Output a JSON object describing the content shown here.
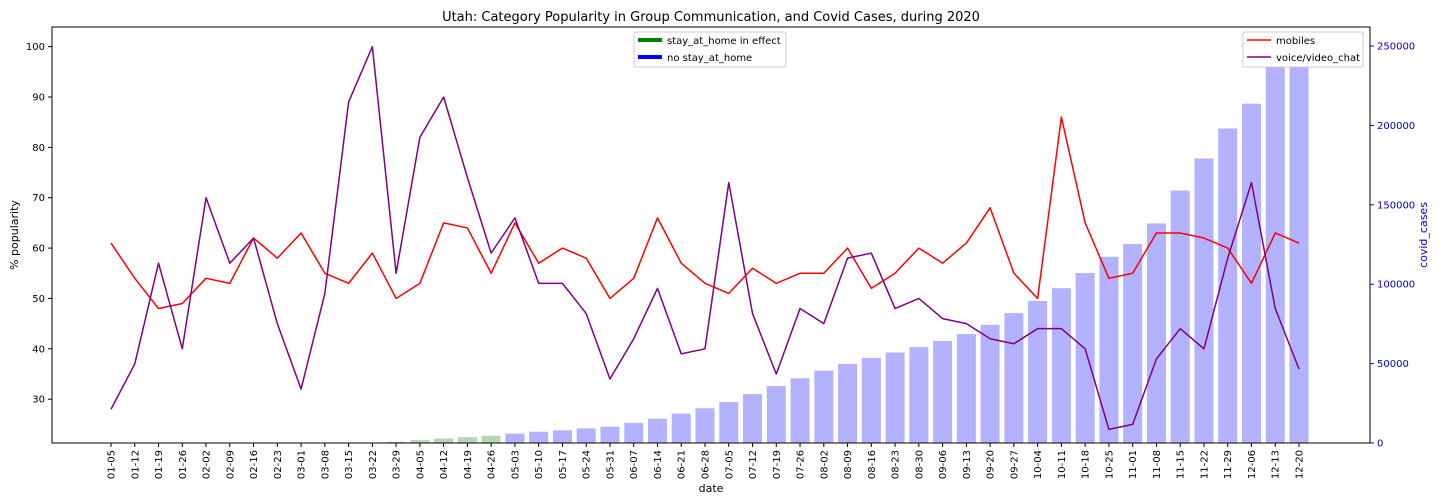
{
  "chart_data": {
    "type": "bar+line",
    "title": "Utah: Category Popularity in Group Communication, and Covid Cases, during 2020",
    "xlabel": "date",
    "ylabel_left": "% popularity",
    "ylabel_right": "covid_cases",
    "categories": [
      "01-05",
      "01-12",
      "01-19",
      "01-26",
      "02-02",
      "02-09",
      "02-16",
      "02-23",
      "03-01",
      "03-08",
      "03-15",
      "03-22",
      "03-29",
      "04-05",
      "04-12",
      "04-19",
      "04-26",
      "05-03",
      "05-10",
      "05-17",
      "05-24",
      "05-31",
      "06-07",
      "06-14",
      "06-21",
      "06-28",
      "07-05",
      "07-12",
      "07-19",
      "07-26",
      "08-02",
      "08-09",
      "08-16",
      "08-23",
      "08-30",
      "09-06",
      "09-13",
      "09-20",
      "09-27",
      "10-04",
      "10-11",
      "10-18",
      "10-25",
      "11-01",
      "11-08",
      "11-15",
      "11-22",
      "11-29",
      "12-06",
      "12-13",
      "12-20"
    ],
    "ylim_left": [
      21.3,
      103.9
    ],
    "ylim_right": [
      0,
      262000
    ],
    "yticks_left": [
      30,
      40,
      50,
      60,
      70,
      80,
      90,
      100
    ],
    "yticks_right": [
      0,
      50000,
      100000,
      150000,
      200000,
      250000
    ],
    "grid": false,
    "line_series": [
      {
        "name": "mobiles",
        "color": "#ff0000",
        "values": [
          61,
          54,
          48,
          49,
          54,
          53,
          62,
          58,
          63,
          55,
          53,
          59,
          50,
          53,
          65,
          64,
          55,
          65,
          57,
          60,
          58,
          50,
          54,
          66,
          57,
          53,
          51,
          56,
          53,
          55,
          55,
          60,
          52,
          55,
          60,
          57,
          61,
          68,
          55,
          50,
          86,
          65,
          54,
          55,
          63,
          63,
          62,
          60,
          53,
          63,
          61
        ]
      },
      {
        "name": "voice/video_chat",
        "color": "#800080",
        "values": [
          28,
          37,
          57,
          40,
          70,
          57,
          62,
          45,
          32,
          51,
          89,
          100,
          55,
          82,
          90,
          74,
          59,
          66,
          53,
          53,
          47,
          34,
          42,
          52,
          39,
          40,
          73,
          47,
          35,
          48,
          45,
          58,
          59,
          48,
          50,
          46,
          45,
          42,
          41,
          44,
          44,
          40,
          24,
          25,
          38,
          44,
          40,
          58,
          73,
          48,
          36
        ]
      }
    ],
    "bar_series": {
      "name": "covid_cases",
      "values": [
        0,
        0,
        0,
        0,
        0,
        0,
        0,
        0,
        0,
        0,
        0,
        0,
        700,
        1800,
        2900,
        3700,
        4600,
        5900,
        7100,
        8000,
        9200,
        10300,
        12700,
        15300,
        18500,
        21900,
        25800,
        30800,
        35900,
        40800,
        45600,
        49800,
        53600,
        57000,
        60400,
        64300,
        68600,
        74400,
        81800,
        89400,
        97500,
        107000,
        117300,
        125300,
        138300,
        159000,
        179200,
        198100,
        213700,
        237100,
        251000
      ],
      "colors": {
        "stay_at_home": "#008000",
        "no_stay_at_home": "#0000ff"
      },
      "opacity": 0.3,
      "stay_at_home_range": [
        "03-29",
        "04-26"
      ]
    },
    "legends": {
      "bars": {
        "position": "top-center",
        "items": [
          {
            "label": "stay_at_home in effect",
            "color": "#008000"
          },
          {
            "label": "no stay_at_home",
            "color": "#0000ff"
          }
        ]
      },
      "lines": {
        "position": "top-right",
        "items": [
          {
            "label": "mobiles",
            "color": "#ff0000"
          },
          {
            "label": "voice/video_chat",
            "color": "#800080"
          }
        ]
      }
    },
    "right_axis_color": "#0000cc"
  }
}
